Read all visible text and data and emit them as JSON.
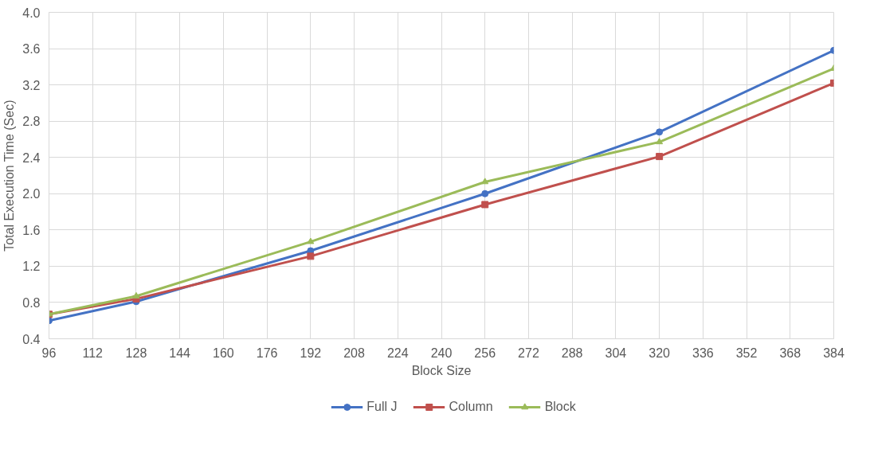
{
  "chart_data": {
    "type": "line",
    "xlabel": "Block Size",
    "ylabel": "Total Execution Time (Sec)",
    "x": [
      96,
      128,
      192,
      256,
      320,
      384
    ],
    "series": [
      {
        "name": "Full J",
        "color": "#4472c4",
        "marker": "circle",
        "values": [
          0.6,
          0.81,
          1.37,
          2.0,
          2.68,
          3.58
        ]
      },
      {
        "name": "Column",
        "color": "#c0504d",
        "marker": "square",
        "values": [
          0.67,
          0.84,
          1.31,
          1.88,
          2.41,
          3.22
        ]
      },
      {
        "name": "Block",
        "color": "#9bbb59",
        "marker": "triangle",
        "values": [
          0.67,
          0.87,
          1.47,
          2.13,
          2.57,
          3.38
        ]
      }
    ],
    "xlim": [
      96,
      384
    ],
    "xticks": [
      96,
      112,
      128,
      144,
      160,
      176,
      192,
      208,
      224,
      240,
      256,
      272,
      288,
      304,
      320,
      336,
      352,
      368,
      384
    ],
    "ylim": [
      0.4,
      4.0
    ],
    "yticks": [
      {
        "value": 0.4,
        "label": "0.4"
      },
      {
        "value": 0.8,
        "label": "0.8"
      },
      {
        "value": 1.2,
        "label": "1.2"
      },
      {
        "value": 1.6,
        "label": "1.6"
      },
      {
        "value": 2.0,
        "label": "2.0"
      },
      {
        "value": 2.4,
        "label": "2.4"
      },
      {
        "value": 2.8,
        "label": "2.8"
      },
      {
        "value": 3.2,
        "label": "3.2"
      },
      {
        "value": 3.6,
        "label": "3.6"
      },
      {
        "value": 4.0,
        "label": "4.0"
      }
    ],
    "grid": true,
    "legend": "bottom",
    "line_style": "solid"
  }
}
